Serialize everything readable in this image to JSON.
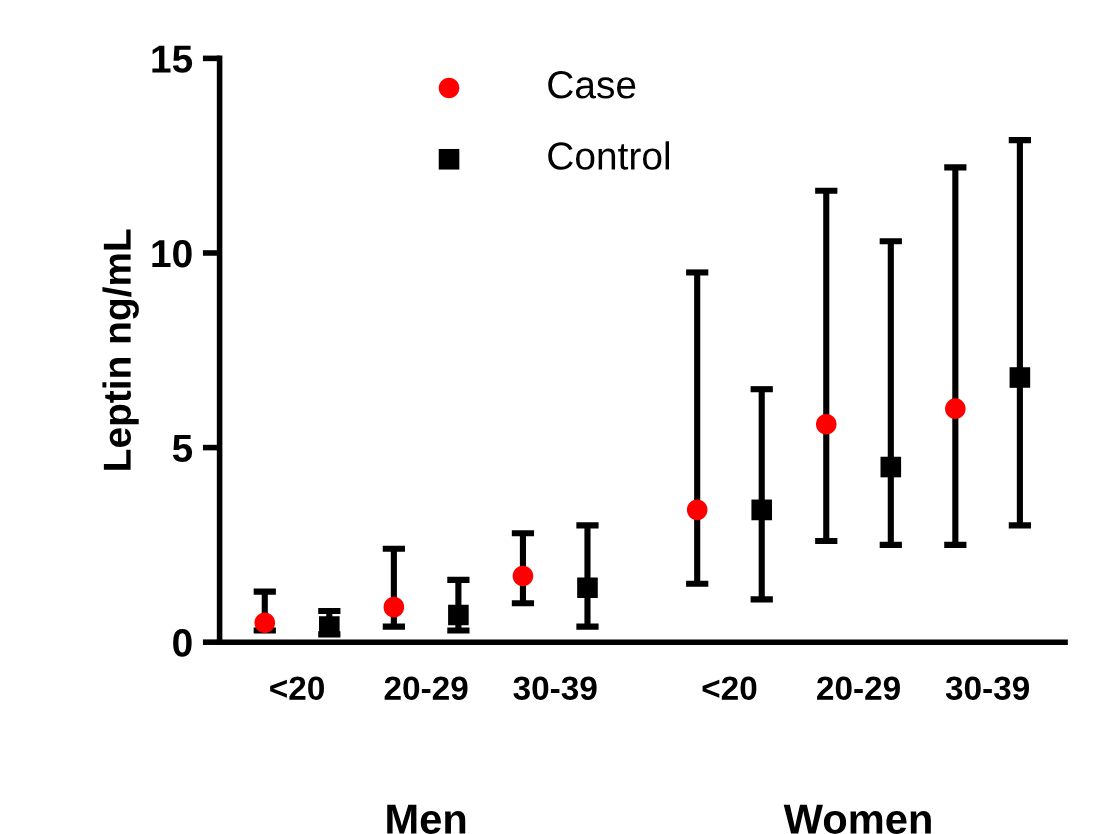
{
  "chart_data": {
    "type": "scatter",
    "ylabel": "Leptin ng/mL",
    "categories": [
      "<20",
      "20-29",
      "30-39",
      "<20",
      "20-29",
      "30-39"
    ],
    "series": [
      {
        "name": "Case",
        "color": "#ff0000",
        "marker": "circle",
        "values": [
          0.5,
          0.9,
          1.7,
          3.4,
          5.6,
          6.0
        ],
        "errors": [
          [
            0.3,
            1.3
          ],
          [
            0.4,
            2.4
          ],
          [
            1.0,
            2.8
          ],
          [
            1.5,
            9.5
          ],
          [
            2.6,
            11.6
          ],
          [
            2.5,
            12.2
          ]
        ]
      },
      {
        "name": "Control",
        "color": "#000000",
        "marker": "square",
        "values": [
          0.4,
          0.7,
          1.4,
          3.4,
          4.5,
          6.8
        ],
        "errors": [
          [
            0.2,
            0.8
          ],
          [
            0.3,
            1.6
          ],
          [
            0.4,
            3.0
          ],
          [
            1.1,
            6.5
          ],
          [
            2.5,
            10.3
          ],
          [
            3.0,
            12.9
          ]
        ]
      }
    ],
    "ylim": [
      0,
      15
    ],
    "yticks": [
      0,
      5,
      10,
      15
    ],
    "grid": false,
    "legend": "top",
    "annotations": [
      "Men",
      "Women"
    ]
  }
}
